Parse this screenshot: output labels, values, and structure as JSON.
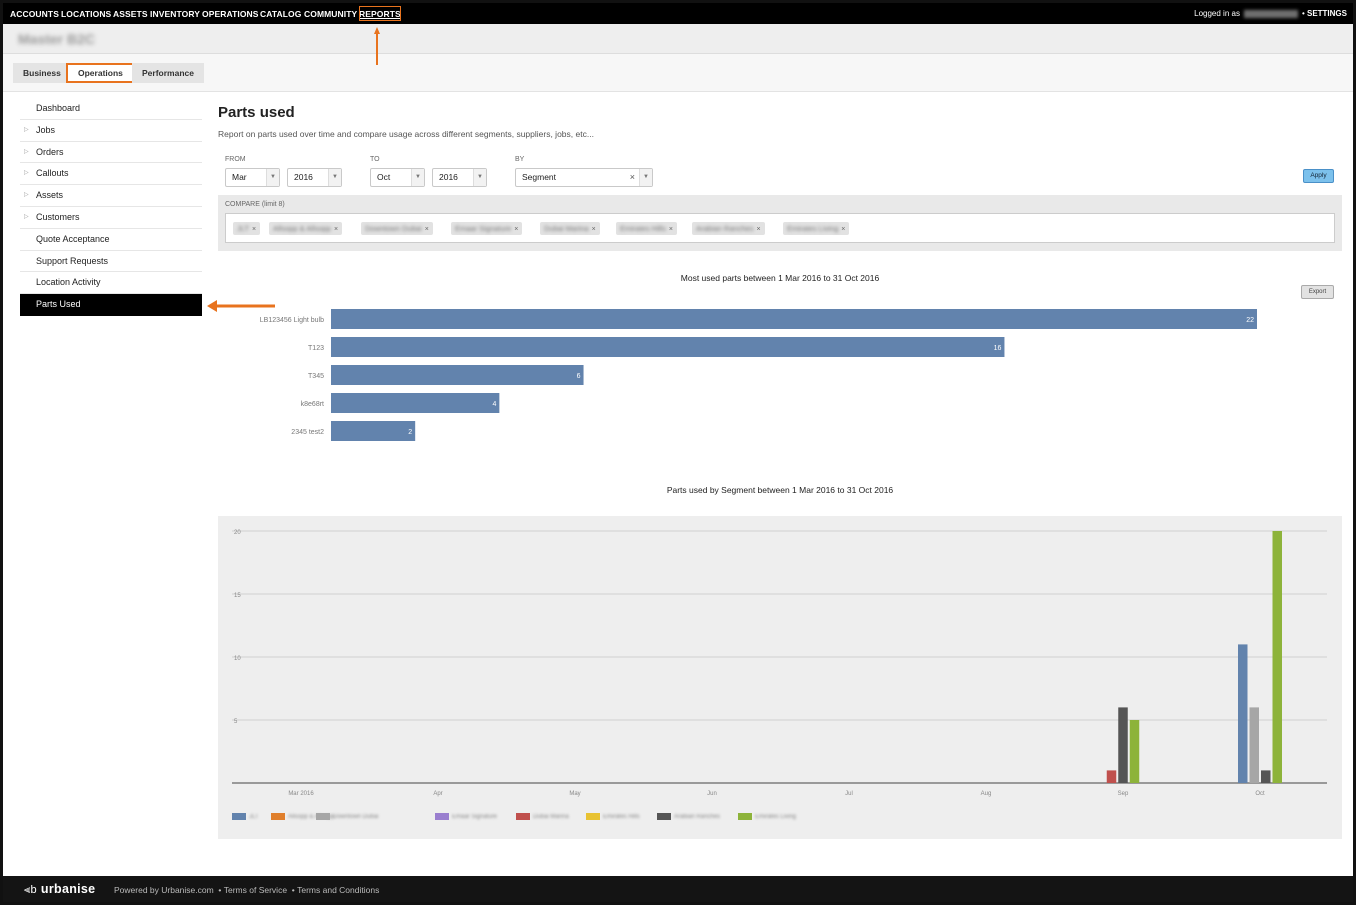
{
  "topnav": {
    "items": [
      "ACCOUNTS",
      "LOCATIONS",
      "ASSETS",
      "INVENTORY",
      "OPERATIONS",
      "CATALOG",
      "COMMUNITY",
      "REPORTS"
    ],
    "logged_in_label": "Logged in as",
    "settings_label": "SETTINGS"
  },
  "company_name": "Master B2C",
  "tabs": [
    "Business",
    "Operations",
    "Performance"
  ],
  "sidebar": {
    "items": [
      "Dashboard",
      "Jobs",
      "Orders",
      "Callouts",
      "Assets",
      "Customers",
      "Quote Acceptance",
      "Support Requests",
      "Location Activity",
      "Parts Used"
    ],
    "active": "Parts Used"
  },
  "page": {
    "title": "Parts used",
    "description": "Report on parts used over time and compare usage across different segments, suppliers, jobs, etc..."
  },
  "filters": {
    "from_label": "FROM",
    "to_label": "TO",
    "by_label": "BY",
    "from_month": "Mar",
    "from_year": "2016",
    "to_month": "Oct",
    "to_year": "2016",
    "by": "Segment",
    "apply_label": "Apply",
    "compare_label": "COMPARE (limit 8)",
    "compare_chips": [
      "JLT",
      "Allsopp & Allsopp",
      "Downtown Dubai",
      "Emaar Signature",
      "Dubai Marina",
      "Emirates Hills",
      "Arabian Ranches",
      "Emirates Living"
    ]
  },
  "export_label": "Export",
  "colors": {
    "accent_orange": "#e8731e",
    "bar_blue": "#6283ad",
    "apply_blue": "#7cc1ec",
    "active_black": "#000000"
  },
  "chart_data": [
    {
      "type": "bar",
      "orientation": "horizontal",
      "title": "Most used parts between 1 Mar 2016 to 31 Oct 2016",
      "categories": [
        "LB123456 Light bulb",
        "T123",
        "T345",
        "k8e68rt",
        "2345 test2"
      ],
      "values": [
        22,
        16,
        6,
        4,
        2
      ],
      "color": "#6283ad",
      "xlim": [
        0,
        22
      ]
    },
    {
      "type": "bar",
      "title": "Parts used by Segment between 1 Mar 2016 to 31 Oct 2016",
      "categories": [
        "Mar 2016",
        "Apr",
        "May",
        "Jun",
        "Jul",
        "Aug",
        "Sep",
        "Oct"
      ],
      "yticks": [
        5,
        10,
        15,
        20
      ],
      "ylim": [
        0,
        20
      ],
      "grid": true,
      "legend": "bottom",
      "series": [
        {
          "name": "JLT",
          "color": "#6283ad",
          "values": [
            0,
            0,
            0,
            0,
            0,
            0,
            0,
            11
          ]
        },
        {
          "name": "Allsopp & Allsopp",
          "color": "#e07f2c",
          "values": [
            0,
            0,
            0,
            0,
            0,
            0,
            0,
            0
          ]
        },
        {
          "name": "Downtown Dubai",
          "color": "#a6a6a6",
          "values": [
            0,
            0,
            0,
            0,
            0,
            0,
            0,
            6
          ]
        },
        {
          "name": "Emaar Signature",
          "color": "#9a7fcf",
          "values": [
            0,
            0,
            0,
            0,
            0,
            0,
            0,
            0
          ]
        },
        {
          "name": "Dubai Marina",
          "color": "#c0504d",
          "values": [
            0,
            0,
            0,
            0,
            0,
            0,
            1,
            0
          ]
        },
        {
          "name": "Emirates Hills",
          "color": "#e8c232",
          "values": [
            0,
            0,
            0,
            0,
            0,
            0,
            0,
            0
          ]
        },
        {
          "name": "Arabian Ranches",
          "color": "#555555",
          "values": [
            0,
            0,
            0,
            0,
            0,
            0,
            6,
            1
          ]
        },
        {
          "name": "Emirates Living",
          "color": "#8db33a",
          "values": [
            0,
            0,
            0,
            0,
            0,
            0,
            5,
            20
          ]
        }
      ]
    }
  ],
  "footer": {
    "brand": "urbanise",
    "powered_by": "Powered by Urbanise.com",
    "terms_of_service": "Terms of Service",
    "terms_and_conditions": "Terms and Conditions"
  }
}
